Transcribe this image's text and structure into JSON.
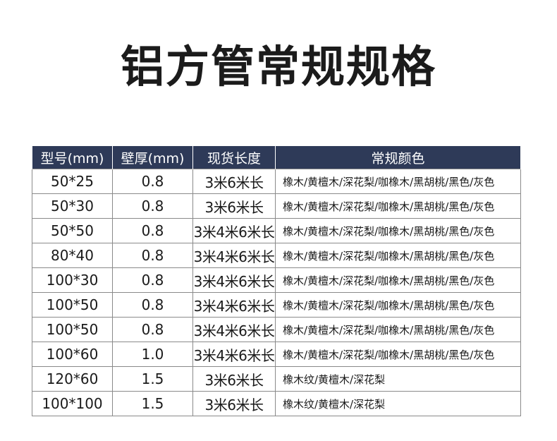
{
  "title": "铝方管常规规格",
  "table": {
    "headers": [
      "型号(mm)",
      "壁厚(mm)",
      "现货长度",
      "常规颜色"
    ],
    "rows": [
      [
        "50*25",
        "0.8",
        "3米6米长",
        "橡木/黄檀木/深花梨/咖橡木/黑胡桃/黑色/灰色"
      ],
      [
        "50*30",
        "0.8",
        "3米6米长",
        "橡木/黄檀木/深花梨/咖橡木/黑胡桃/黑色/灰色"
      ],
      [
        "50*50",
        "0.8",
        "3米4米6米长",
        "橡木/黄檀木/深花梨/咖橡木/黑胡桃/黑色/灰色"
      ],
      [
        "80*40",
        "0.8",
        "3米4米6米长",
        "橡木/黄檀木/深花梨/咖橡木/黑胡桃/黑色/灰色"
      ],
      [
        "100*30",
        "0.8",
        "3米4米6米长",
        "橡木/黄檀木/深花梨/咖橡木/黑胡桃/黑色/灰色"
      ],
      [
        "100*50",
        "0.8",
        "3米4米6米长",
        "橡木/黄檀木/深花梨/咖橡木/黑胡桃/黑色/灰色"
      ],
      [
        "100*50",
        "0.8",
        "3米4米6米长",
        "橡木/黄檀木/深花梨/咖橡木/黑胡桃/黑色/灰色"
      ],
      [
        "100*60",
        "1.0",
        "3米4米6米长",
        "橡木/黄檀木/深花梨/咖橡木/黑胡桃/黑色/灰色"
      ],
      [
        "120*60",
        "1.5",
        "3米6米长",
        "橡木纹/黄檀木/深花梨"
      ],
      [
        "100*100",
        "1.5",
        "3米6米长",
        "橡木纹/黄檀木/深花梨"
      ]
    ]
  },
  "colors": {
    "header_bg": "#2e3a58",
    "header_text": "#ffffff",
    "border": "#8a8a8a",
    "title_text": "#1b1b1b"
  }
}
